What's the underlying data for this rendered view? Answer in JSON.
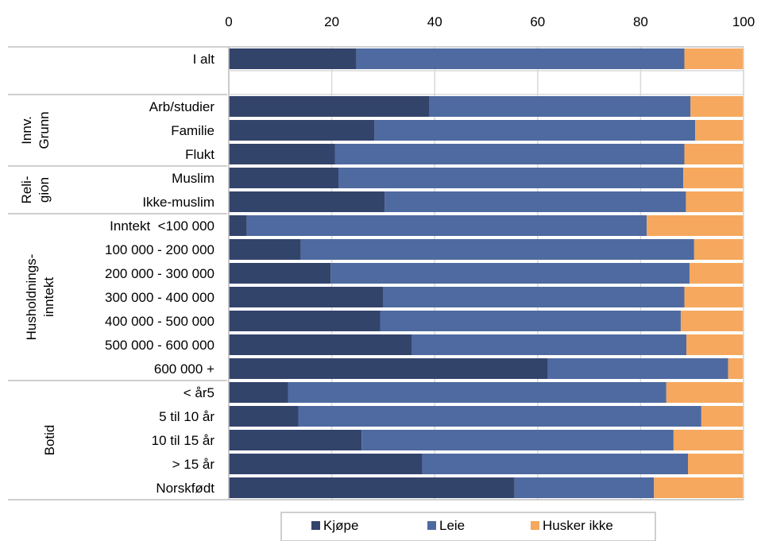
{
  "chart_data": {
    "type": "bar",
    "orientation": "horizontal",
    "stacked": true,
    "x_axis_position": "top",
    "xlim": [
      0,
      100
    ],
    "x_ticks": [
      "0",
      "20",
      "40",
      "60",
      "80",
      "100"
    ],
    "title": "",
    "xlabel": "",
    "ylabel": "",
    "grid": true,
    "legend_position": "bottom",
    "colors": {
      "Kjøpe": "#33446b",
      "Leie": "#4e6aa0",
      "Husker ikke": "#f6a85e"
    },
    "categories": [
      "I alt",
      "",
      "Arb/studier",
      "Familie",
      "Flukt",
      "Muslim",
      "Ikke-muslim",
      "Inntekt  <100 000",
      "100 000 - 200 000",
      "200 000 - 300 000",
      "300 000 - 400 000",
      "400 000 - 500 000",
      "500 000 - 600 000",
      "600 000 +",
      "< år5",
      "5 til 10 år",
      "10 til 15 år",
      "> 15 år",
      "Norskfødt"
    ],
    "groups": [
      {
        "label": [
          "Innv.",
          "Grunn"
        ],
        "rows": [
          2,
          4
        ]
      },
      {
        "label": [
          "Reli-",
          "gion"
        ],
        "rows": [
          5,
          6
        ]
      },
      {
        "label": [
          "Husholdnings-",
          "inntekt"
        ],
        "rows": [
          7,
          13
        ]
      },
      {
        "label": [
          "Botid"
        ],
        "rows": [
          14,
          18
        ]
      }
    ],
    "series": [
      {
        "name": "Kjøpe",
        "values": [
          24.8,
          null,
          39,
          28.3,
          20.6,
          21.3,
          30.3,
          3.5,
          14,
          19.8,
          30,
          29.4,
          35.6,
          62,
          11.5,
          13.5,
          25.8,
          37.6,
          55.5
        ]
      },
      {
        "name": "Leie",
        "values": [
          63.7,
          null,
          50.7,
          62.3,
          67.9,
          67,
          58.5,
          77.7,
          76.4,
          69.7,
          58.5,
          58.4,
          53.3,
          35,
          73.5,
          78.3,
          60.6,
          51.6,
          27.1
        ]
      },
      {
        "name": "Husker ikke",
        "values": [
          11.5,
          null,
          10.3,
          9.4,
          11.5,
          11.7,
          11.2,
          18.8,
          9.6,
          10.5,
          11.5,
          12.2,
          11.1,
          3,
          15,
          8.2,
          13.6,
          10.8,
          17.4
        ]
      }
    ]
  }
}
